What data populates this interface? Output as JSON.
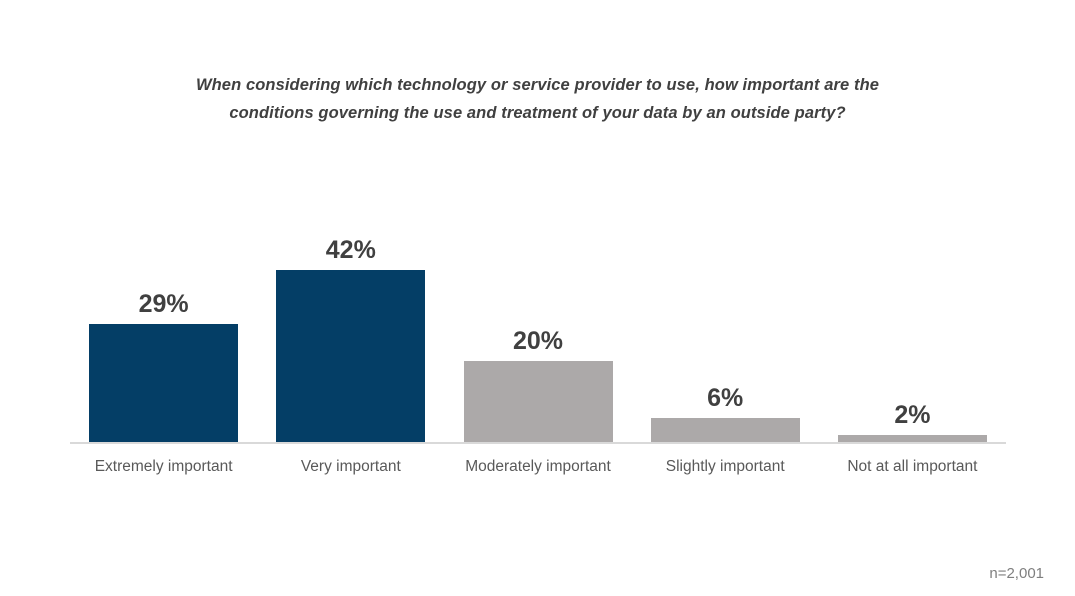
{
  "chart_data": {
    "type": "bar",
    "title": "When considering which technology or service provider to use, how important are the conditions governing the use and treatment of your data by an outside party?",
    "title_lines": [
      "When considering which technology or service provider to use, how important are the",
      "conditions governing the use and treatment of your data by an outside party?"
    ],
    "categories": [
      "Extremely important",
      "Very important",
      "Moderately important",
      "Slightly important",
      "Not at all important"
    ],
    "values": [
      29,
      42,
      20,
      6,
      2
    ],
    "value_labels": [
      "29%",
      "42%",
      "20%",
      "6%",
      "2%"
    ],
    "bar_colors": [
      "#043E66",
      "#043E66",
      "#ACA9A9",
      "#ACA9A9",
      "#ACA9A9"
    ],
    "colors": {
      "accent_blue": "#043E66",
      "neutral_gray": "#ACA9A9",
      "axis_line": "#D9D9D9",
      "value_label_text": "#404040",
      "category_label_text": "#595959",
      "note_text": "#7F7F7F"
    },
    "xlabel": "",
    "ylabel": "",
    "ylim": [
      0,
      45
    ],
    "grid": false,
    "legend": false,
    "data_labels": "outside-end"
  },
  "footer": {
    "sample_note": "n=2,001"
  }
}
